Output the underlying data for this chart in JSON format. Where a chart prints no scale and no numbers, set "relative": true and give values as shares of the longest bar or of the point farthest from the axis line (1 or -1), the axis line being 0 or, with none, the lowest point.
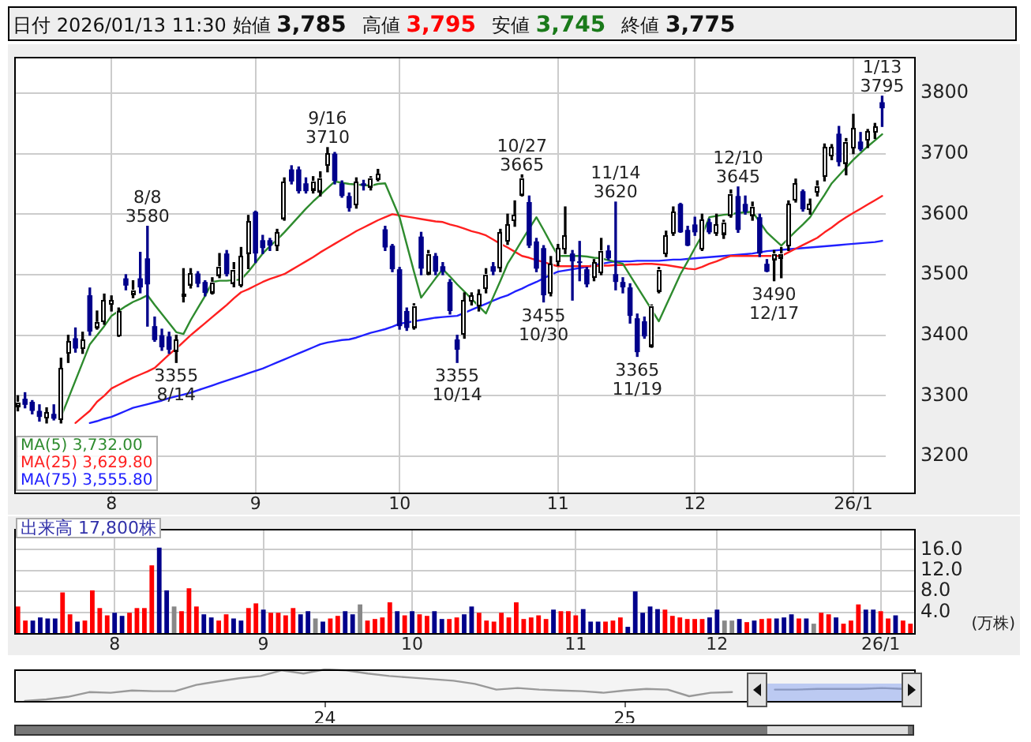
{
  "chart_data": [
    {
      "type": "candlestick",
      "title": "日付 2026/01/13 11:30 始値 3,785 高値 3,795 安値 3,745 終値 3,775",
      "categories": [
        null,
        null,
        null,
        null,
        null,
        null,
        null,
        null,
        null,
        null,
        null,
        null,
        null,
        "8",
        null,
        null,
        null,
        null,
        null,
        null,
        null,
        null,
        null,
        null,
        null,
        null,
        null,
        null,
        null,
        null,
        null,
        null,
        null,
        "9",
        null,
        null,
        null,
        null,
        null,
        null,
        null,
        null,
        null,
        null,
        null,
        null,
        null,
        null,
        null,
        null,
        null,
        null,
        null,
        "10",
        null,
        null,
        null,
        null,
        null,
        null,
        null,
        null,
        null,
        null,
        null,
        null,
        null,
        null,
        null,
        null,
        null,
        null,
        null,
        null,
        null,
        "11",
        null,
        null,
        null,
        null,
        null,
        null,
        null,
        null,
        null,
        null,
        null,
        null,
        null,
        null,
        null,
        null,
        null,
        null,
        "12",
        null,
        null,
        null,
        null,
        null,
        null,
        null,
        null,
        null,
        null,
        null,
        null,
        null,
        null,
        null,
        null,
        null,
        null,
        null,
        null,
        null,
        "26/1",
        null,
        null,
        null,
        null
      ],
      "series": [
        {
          "type": "candlestick",
          "colors": [
            "#ffffff",
            "#00008b",
            "#00008b",
            "#00008b",
            "#ffffff",
            "#00008b",
            "#ffffff",
            "#ffffff",
            "#00008b",
            "#ffffff",
            "#00008b",
            "#ffffff",
            "#ffffff",
            "#ffffff",
            "#ffffff",
            "#00008b",
            "#ffffff",
            "#00008b",
            "#00008b",
            "#00008b",
            "#00008b",
            "#00008b",
            "#ffffff",
            "#ffffff",
            "#ffffff",
            "#00008b",
            "#00008b",
            "#ffffff",
            "#ffffff",
            "#00008b",
            "#ffffff",
            "#ffffff",
            "#ffffff",
            "#00008b",
            "#00008b",
            "#00008b",
            "#ffffff",
            "#ffffff",
            "#00008b",
            "#00008b",
            "#00008b",
            "#ffffff",
            "#ffffff",
            "#ffffff",
            "#00008b",
            "#00008b",
            "#00008b",
            "#ffffff",
            "#00008b",
            "#ffffff",
            "#ffffff",
            "#00008b",
            "#00008b",
            "#00008b",
            "#00008b",
            "#ffffff",
            "#00008b",
            "#ffffff",
            "#00008b",
            "#00008b",
            "#00008b",
            "#00008b",
            "#ffffff",
            "#ffffff",
            "#ffffff",
            "#ffffff",
            "#00008b",
            "#ffffff",
            "#ffffff",
            "#ffffff",
            "#ffffff",
            "#00008b",
            "#00008b",
            "#00008b",
            "#ffffff",
            "#ffffff",
            "#ffffff",
            "#00008b",
            "#00008b",
            "#00008b",
            "#ffffff",
            "#ffffff",
            "#00008b",
            "#00008b",
            "#00008b",
            "#00008b",
            "#00008b",
            "#00008b",
            "#ffffff",
            "#ffffff",
            "#ffffff",
            "#ffffff",
            "#00008b",
            "#00008b",
            "#00008b",
            "#ffffff",
            "#00008b",
            "#ffffff",
            "#ffffff",
            "#ffffff",
            "#00008b",
            "#00008b",
            "#ffffff",
            "#00008b",
            "#00008b",
            "#ffffff",
            "#ffffff",
            "#ffffff",
            "#ffffff",
            "#00008b",
            "#ffffff",
            "#ffffff",
            "#ffffff",
            "#ffffff",
            "#00008b",
            "#ffffff",
            "#ffffff",
            "#00008b",
            "#ffffff",
            "#ffffff",
            "#00008b"
          ],
          "ohlc": [
            [
              3285,
              3300,
              3275,
              3290
            ],
            [
              3295,
              3305,
              3280,
              3285
            ],
            [
              3290,
              3292,
              3270,
              3275
            ],
            [
              3275,
              3285,
              3258,
              3265
            ],
            [
              3265,
              3280,
              3255,
              3272
            ],
            [
              3270,
              3285,
              3260,
              3262
            ],
            [
              3262,
              3362,
              3255,
              3345
            ],
            [
              3372,
              3400,
              3355,
              3390
            ],
            [
              3395,
              3412,
              3372,
              3378
            ],
            [
              3380,
              3405,
              3370,
              3393
            ],
            [
              3466,
              3478,
              3400,
              3406
            ],
            [
              3415,
              3440,
              3410,
              3422
            ],
            [
              3423,
              3468,
              3418,
              3457
            ],
            [
              3452,
              3465,
              3440,
              3458
            ],
            [
              3400,
              3445,
              3398,
              3440
            ],
            [
              3494,
              3500,
              3475,
              3482
            ],
            [
              3470,
              3490,
              3462,
              3475
            ],
            [
              3494,
              3537,
              3470,
              3479
            ],
            [
              3527,
              3580,
              3415,
              3484
            ],
            [
              3415,
              3430,
              3390,
              3392
            ],
            [
              3400,
              3410,
              3375,
              3380
            ],
            [
              3398,
              3405,
              3370,
              3376
            ],
            [
              3376,
              3400,
              3355,
              3393
            ],
            [
              3465,
              3510,
              3455,
              3468
            ],
            [
              3485,
              3510,
              3478,
              3502
            ],
            [
              3502,
              3505,
              3480,
              3485
            ],
            [
              3488,
              3490,
              3465,
              3470
            ],
            [
              3473,
              3495,
              3468,
              3488
            ],
            [
              3501,
              3535,
              3495,
              3514
            ],
            [
              3535,
              3540,
              3498,
              3501
            ],
            [
              3488,
              3520,
              3480,
              3509
            ],
            [
              3484,
              3545,
              3480,
              3531
            ],
            [
              3537,
              3598,
              3510,
              3588
            ],
            [
              3604,
              3605,
              3520,
              3535
            ],
            [
              3557,
              3565,
              3535,
              3544
            ],
            [
              3557,
              3560,
              3540,
              3548
            ],
            [
              3548,
              3575,
              3540,
              3570
            ],
            [
              3595,
              3660,
              3590,
              3654
            ],
            [
              3674,
              3680,
              3650,
              3654
            ],
            [
              3674,
              3678,
              3635,
              3638
            ],
            [
              3651,
              3660,
              3635,
              3638
            ],
            [
              3643,
              3662,
              3635,
              3655
            ],
            [
              3640,
              3670,
              3630,
              3660
            ],
            [
              3681,
              3710,
              3670,
              3700
            ],
            [
              3700,
              3702,
              3650,
              3655
            ],
            [
              3651,
              3655,
              3628,
              3630
            ],
            [
              3630,
              3635,
              3605,
              3610
            ],
            [
              3617,
              3660,
              3610,
              3654
            ],
            [
              3651,
              3656,
              3640,
              3647
            ],
            [
              3647,
              3662,
              3640,
              3660
            ],
            [
              3660,
              3674,
              3655,
              3667
            ],
            [
              3575,
              3580,
              3540,
              3545
            ],
            [
              3548,
              3550,
              3505,
              3509
            ],
            [
              3509,
              3512,
              3410,
              3415
            ],
            [
              3440,
              3445,
              3408,
              3412
            ],
            [
              3415,
              3452,
              3410,
              3449
            ],
            [
              3563,
              3570,
              3500,
              3510
            ],
            [
              3505,
              3540,
              3500,
              3535
            ],
            [
              3531,
              3535,
              3500,
              3505
            ],
            [
              3514,
              3520,
              3500,
              3505
            ],
            [
              3488,
              3492,
              3435,
              3440
            ],
            [
              3393,
              3400,
              3355,
              3376
            ],
            [
              3402,
              3470,
              3395,
              3458
            ],
            [
              3458,
              3470,
              3450,
              3466
            ],
            [
              3450,
              3475,
              3440,
              3468
            ],
            [
              3479,
              3510,
              3470,
              3501
            ],
            [
              3514,
              3520,
              3500,
              3505
            ],
            [
              3513,
              3575,
              3505,
              3570
            ],
            [
              3557,
              3600,
              3550,
              3583
            ],
            [
              3590,
              3622,
              3580,
              3598
            ],
            [
              3634,
              3665,
              3630,
              3660
            ],
            [
              3620,
              3630,
              3545,
              3548
            ],
            [
              3555,
              3560,
              3505,
              3510
            ],
            [
              3544,
              3548,
              3455,
              3466
            ],
            [
              3471,
              3530,
              3465,
              3518
            ],
            [
              3522,
              3550,
              3515,
              3544
            ],
            [
              3544,
              3612,
              3535,
              3565
            ],
            [
              3535,
              3540,
              3458,
              3522
            ],
            [
              3522,
              3555,
              3490,
              3520
            ],
            [
              3509,
              3512,
              3480,
              3484
            ],
            [
              3496,
              3525,
              3490,
              3520
            ],
            [
              3505,
              3560,
              3500,
              3540
            ],
            [
              3540,
              3548,
              3525,
              3527
            ],
            [
              3501,
              3620,
              3475,
              3488
            ],
            [
              3488,
              3495,
              3470,
              3479
            ],
            [
              3479,
              3485,
              3420,
              3432
            ],
            [
              3428,
              3435,
              3365,
              3372
            ],
            [
              3423,
              3430,
              3395,
              3398
            ],
            [
              3385,
              3450,
              3380,
              3449
            ],
            [
              3475,
              3512,
              3470,
              3509
            ],
            [
              3535,
              3572,
              3530,
              3565
            ],
            [
              3570,
              3612,
              3565,
              3604
            ],
            [
              3617,
              3618,
              3570,
              3570
            ],
            [
              3574,
              3580,
              3548,
              3548
            ],
            [
              3583,
              3595,
              3565,
              3570
            ],
            [
              3544,
              3600,
              3540,
              3591
            ],
            [
              3587,
              3592,
              3568,
              3570
            ],
            [
              3570,
              3600,
              3565,
              3583
            ],
            [
              3570,
              3590,
              3560,
              3587
            ],
            [
              3600,
              3640,
              3595,
              3634
            ],
            [
              3630,
              3645,
              3570,
              3574
            ],
            [
              3617,
              3630,
              3600,
              3604
            ],
            [
              3600,
              3620,
              3590,
              3613
            ],
            [
              3595,
              3600,
              3530,
              3535
            ],
            [
              3518,
              3525,
              3505,
              3505
            ],
            [
              3527,
              3540,
              3490,
              3535
            ],
            [
              3531,
              3545,
              3495,
              3535
            ],
            [
              3548,
              3622,
              3540,
              3617
            ],
            [
              3625,
              3658,
              3620,
              3651
            ],
            [
              3638,
              3640,
              3605,
              3608
            ],
            [
              3608,
              3625,
              3600,
              3617
            ],
            [
              3638,
              3655,
              3630,
              3647
            ],
            [
              3664,
              3716,
              3655,
              3711
            ],
            [
              3698,
              3715,
              3690,
              3711
            ],
            [
              3733,
              3745,
              3680,
              3686
            ],
            [
              3686,
              3725,
              3665,
              3720
            ],
            [
              3711,
              3765,
              3700,
              3742
            ],
            [
              3720,
              3735,
              3705,
              3707
            ],
            [
              3724,
              3740,
              3710,
              3737
            ],
            [
              3737,
              3750,
              3725,
              3745
            ],
            [
              3785,
              3795,
              3745,
              3775
            ]
          ]
        },
        {
          "type": "line",
          "name": "MA(5) 3,732.00",
          "color": "#2e8b2e",
          "values": [
            null,
            null,
            null,
            null,
            null,
            null,
            3265,
            3295,
            3325,
            3355,
            3385,
            3400,
            3415,
            3432,
            3440,
            3448,
            3455,
            3460,
            3466,
            3450,
            3435,
            3420,
            3405,
            3402,
            3425,
            3445,
            3465,
            3488,
            3490,
            3490,
            3491,
            3492,
            3505,
            3520,
            3535,
            3547,
            3558,
            3570,
            3583,
            3596,
            3609,
            3621,
            3632,
            3643,
            3654,
            3652,
            3650,
            3649,
            3648,
            3647,
            3650,
            3651,
            3623,
            3595,
            3550,
            3505,
            3462,
            3478,
            3494,
            3509,
            3497,
            3484,
            3472,
            3460,
            3448,
            3436,
            3463,
            3490,
            3518,
            3537,
            3557,
            3576,
            3595,
            3574,
            3552,
            3531,
            3531,
            3531,
            3531,
            3530,
            3528,
            3527,
            3524,
            3521,
            3518,
            3499,
            3480,
            3461,
            3442,
            3423,
            3449,
            3475,
            3501,
            3522,
            3544,
            3565,
            3595,
            3597,
            3599,
            3600,
            3602,
            3603,
            3604,
            3587,
            3570,
            3559,
            3548,
            3560,
            3572,
            3583,
            3595,
            3614,
            3632,
            3651,
            3664,
            3677,
            3690,
            3701,
            3712,
            3722,
            3732
          ]
        },
        {
          "type": "line",
          "name": "MA(25) 3,629.80",
          "color": "#ff2020",
          "values": [
            null,
            null,
            null,
            null,
            null,
            null,
            null,
            null,
            3255,
            3265,
            3275,
            3290,
            3300,
            3312,
            3318,
            3324,
            3330,
            3335,
            3340,
            3346,
            3357,
            3368,
            3378,
            3389,
            3400,
            3410,
            3420,
            3430,
            3440,
            3450,
            3461,
            3471,
            3476,
            3482,
            3488,
            3493,
            3497,
            3501,
            3508,
            3515,
            3522,
            3529,
            3537,
            3544,
            3551,
            3558,
            3565,
            3572,
            3578,
            3584,
            3590,
            3595,
            3600,
            3598,
            3596,
            3594,
            3592,
            3590,
            3588,
            3587,
            3583,
            3580,
            3576,
            3572,
            3569,
            3565,
            3558,
            3551,
            3545,
            3538,
            3531,
            3528,
            3524,
            3521,
            3517,
            3514,
            3514,
            3514,
            3514,
            3514,
            3514,
            3515,
            3515,
            3516,
            3516,
            3517,
            3517,
            3518,
            3518,
            3517,
            3516,
            3514,
            3512,
            3510,
            3509,
            3513,
            3518,
            3522,
            3527,
            3531,
            3531,
            3531,
            3531,
            3531,
            3531,
            3531,
            3531,
            3537,
            3543,
            3549,
            3555,
            3561,
            3570,
            3578,
            3587,
            3595,
            3602,
            3609,
            3616,
            3623,
            3630
          ]
        },
        {
          "type": "line",
          "name": "MA(75) 3,555.80",
          "color": "#2020ff",
          "values": [
            null,
            null,
            null,
            null,
            null,
            null,
            null,
            null,
            null,
            null,
            3255,
            3258,
            3262,
            3265,
            3270,
            3275,
            3280,
            3283,
            3286,
            3289,
            3292,
            3296,
            3299,
            3302,
            3305,
            3309,
            3313,
            3317,
            3321,
            3325,
            3329,
            3333,
            3337,
            3341,
            3345,
            3350,
            3355,
            3360,
            3365,
            3370,
            3375,
            3380,
            3385,
            3388,
            3390,
            3392,
            3393,
            3396,
            3400,
            3404,
            3407,
            3410,
            3414,
            3419,
            3421,
            3423,
            3425,
            3427,
            3429,
            3430,
            3431,
            3432,
            3437,
            3442,
            3447,
            3452,
            3457,
            3462,
            3466,
            3472,
            3477,
            3483,
            3488,
            3494,
            3500,
            3505,
            3507,
            3509,
            3511,
            3513,
            3516,
            3518,
            3520,
            3522,
            3522,
            3522,
            3523,
            3523,
            3523,
            3523,
            3524,
            3525,
            3525,
            3526,
            3527,
            3528,
            3529,
            3530,
            3531,
            3532,
            3533,
            3534,
            3535,
            3537,
            3539,
            3540,
            3541,
            3542,
            3543,
            3544,
            3545,
            3546,
            3547,
            3548,
            3549,
            3550,
            3551,
            3552,
            3553,
            3554,
            3556
          ]
        }
      ],
      "ylim": [
        3140,
        3860
      ],
      "yticks": [
        3200,
        3300,
        3400,
        3500,
        3600,
        3700,
        3800
      ],
      "grid": true,
      "legend": "bottom left",
      "annotations": [
        {
          "text": "8/8\n3580",
          "y": 3580
        },
        {
          "text": "3355\n8/14",
          "y": 3355
        },
        {
          "text": "9/16\n3710",
          "y": 3710
        },
        {
          "text": "3355\n10/14",
          "y": 3355
        },
        {
          "text": "10/27\n3665",
          "y": 3665
        },
        {
          "text": "3455\n10/30",
          "y": 3455
        },
        {
          "text": "11/14\n3620",
          "y": 3620
        },
        {
          "text": "3365\n11/19",
          "y": 3365
        },
        {
          "text": "12/10\n3645",
          "y": 3645
        },
        {
          "text": "3490\n12/17",
          "y": 3490
        },
        {
          "text": "1/13\n3795",
          "y": 3795
        }
      ]
    },
    {
      "type": "bar",
      "title": "出来高 17,800株",
      "ylabel": "(万株)",
      "categories": [
        null,
        null,
        null,
        null,
        null,
        null,
        null,
        null,
        null,
        null,
        null,
        null,
        null,
        "8",
        null,
        null,
        null,
        null,
        null,
        null,
        null,
        null,
        null,
        null,
        null,
        null,
        null,
        null,
        null,
        null,
        null,
        null,
        null,
        "9",
        null,
        null,
        null,
        null,
        null,
        null,
        null,
        null,
        null,
        null,
        null,
        null,
        null,
        null,
        null,
        null,
        null,
        null,
        null,
        "10",
        null,
        null,
        null,
        null,
        null,
        null,
        null,
        null,
        null,
        null,
        null,
        null,
        null,
        null,
        null,
        null,
        null,
        null,
        null,
        null,
        null,
        "11",
        null,
        null,
        null,
        null,
        null,
        null,
        null,
        null,
        null,
        null,
        null,
        null,
        null,
        null,
        null,
        null,
        null,
        null,
        "12",
        null,
        null,
        null,
        null,
        null,
        null,
        null,
        null,
        null,
        null,
        null,
        null,
        null,
        null,
        null,
        null,
        null,
        null,
        null,
        null,
        null,
        "26/1",
        null,
        null,
        null,
        null
      ],
      "values": [
        5.1,
        2.4,
        2.4,
        3.0,
        2.8,
        2.8,
        7.8,
        3.6,
        2.2,
        2.4,
        8.2,
        4.8,
        3.4,
        3.9,
        3.3,
        3.9,
        4.8,
        4.8,
        13.0,
        16.4,
        8.2,
        5.1,
        4.2,
        8.6,
        5.1,
        3.6,
        3.0,
        2.4,
        3.6,
        2.8,
        2.4,
        4.8,
        5.7,
        4.5,
        3.9,
        3.9,
        3.4,
        4.8,
        3.6,
        4.2,
        2.8,
        2.2,
        2.8,
        3.3,
        4.2,
        3.6,
        5.5,
        2.4,
        2.7,
        3.0,
        5.9,
        4.2,
        3.4,
        4.2,
        3.6,
        3.3,
        4.2,
        2.7,
        2.7,
        3.0,
        3.6,
        5.1,
        3.9,
        2.4,
        2.2,
        3.9,
        3.0,
        5.9,
        2.7,
        3.0,
        3.4,
        2.7,
        4.5,
        4.2,
        4.2,
        3.4,
        4.6,
        2.2,
        2.2,
        2.2,
        2.4,
        3.0,
        1.2,
        8.0,
        3.9,
        5.1,
        4.6,
        4.5,
        3.3,
        3.0,
        2.7,
        2.7,
        2.7,
        3.0,
        4.5,
        2.4,
        2.4,
        2.7,
        2.1,
        2.4,
        2.7,
        2.8,
        2.8,
        3.0,
        3.6,
        2.8,
        2.8,
        1.8,
        3.9,
        3.6,
        3.0,
        1.8,
        2.4,
        5.5,
        4.5,
        4.5,
        4.2,
        2.8,
        3.4,
        2.4,
        1.8
      ],
      "colors": [
        "#ff0000",
        "#ff0000",
        "#00008b",
        "#00008b",
        "#00008b",
        "#00008b",
        "#ff0000",
        "#ff0000",
        "#00008b",
        "#ff0000",
        "#ff0000",
        "#ff0000",
        "#ff0000",
        "#00008b",
        "#00008b",
        "#ff0000",
        "#ff0000",
        "#ff0000",
        "#ff0000",
        "#00008b",
        "#00008b",
        "#888888",
        "#ff0000",
        "#ff0000",
        "#ff0000",
        "#00008b",
        "#00008b",
        "#ff0000",
        "#ff0000",
        "#00008b",
        "#00008b",
        "#ff0000",
        "#ff0000",
        "#00008b",
        "#ff0000",
        "#ff0000",
        "#ff0000",
        "#ff0000",
        "#00008b",
        "#00008b",
        "#888888",
        "#00008b",
        "#ff0000",
        "#ff0000",
        "#00008b",
        "#00008b",
        "#888888",
        "#ff0000",
        "#ff0000",
        "#ff0000",
        "#ff0000",
        "#00008b",
        "#ff0000",
        "#00008b",
        "#ff0000",
        "#ff0000",
        "#00008b",
        "#00008b",
        "#ff0000",
        "#ff0000",
        "#00008b",
        "#00008b",
        "#ff0000",
        "#ff0000",
        "#ff0000",
        "#ff0000",
        "#ff0000",
        "#ff0000",
        "#ff0000",
        "#ff0000",
        "#ff0000",
        "#ff0000",
        "#00008b",
        "#ff0000",
        "#ff0000",
        "#ff0000",
        "#00008b",
        "#00008b",
        "#00008b",
        "#ff0000",
        "#ff0000",
        "#ff0000",
        "#00008b",
        "#00008b",
        "#00008b",
        "#00008b",
        "#00008b",
        "#ff0000",
        "#ff0000",
        "#ff0000",
        "#ff0000",
        "#ff0000",
        "#ff0000",
        "#00008b",
        "#00008b",
        "#888888",
        "#888888",
        "#00008b",
        "#ff0000",
        "#00008b",
        "#ff0000",
        "#ff0000",
        "#00008b",
        "#00008b",
        "#00008b",
        "#ff0000",
        "#00008b",
        "#888888",
        "#ff0000",
        "#ff0000",
        "#00008b",
        "#ff0000",
        "#ff0000",
        "#ff0000",
        "#00008b",
        "#00008b",
        "#ff0000",
        "#ff0000",
        "#00008b",
        "#ff0000",
        "#ff0000"
      ],
      "ylim": [
        0,
        20
      ],
      "yticks": [
        {
          "value": 4,
          "label": "4.0"
        },
        {
          "value": 8,
          "label": "8.0"
        },
        {
          "value": 12,
          "label": "12.0"
        },
        {
          "value": 16,
          "label": "16.0"
        }
      ],
      "grid": true
    },
    {
      "type": "line",
      "relative": true,
      "color": "#999999",
      "categories": [
        null,
        null,
        null,
        null,
        null,
        null,
        null,
        null,
        null,
        null,
        null,
        null,
        null,
        null,
        "24",
        null,
        null,
        null,
        null,
        null,
        null,
        null,
        null,
        null,
        null,
        null,
        null,
        null,
        "25",
        null,
        null,
        null,
        null,
        null,
        null,
        null,
        null,
        null,
        null,
        null,
        null,
        null
      ],
      "values": [
        0,
        0.05,
        0.13,
        0.28,
        0.26,
        0.33,
        0.31,
        0.31,
        0.51,
        0.62,
        0.72,
        0.79,
        0.97,
        0.87,
        1,
        0.97,
        0.87,
        0.79,
        0.74,
        0.69,
        0.64,
        0.54,
        0.36,
        0.41,
        0.36,
        0.33,
        0.31,
        0.26,
        0.33,
        0.38,
        0.36,
        0.15,
        0.26,
        0.28,
        null,
        0.36,
        0.36,
        0.38,
        0.38,
        0.38,
        0.41,
        0.38
      ]
    }
  ]
}
